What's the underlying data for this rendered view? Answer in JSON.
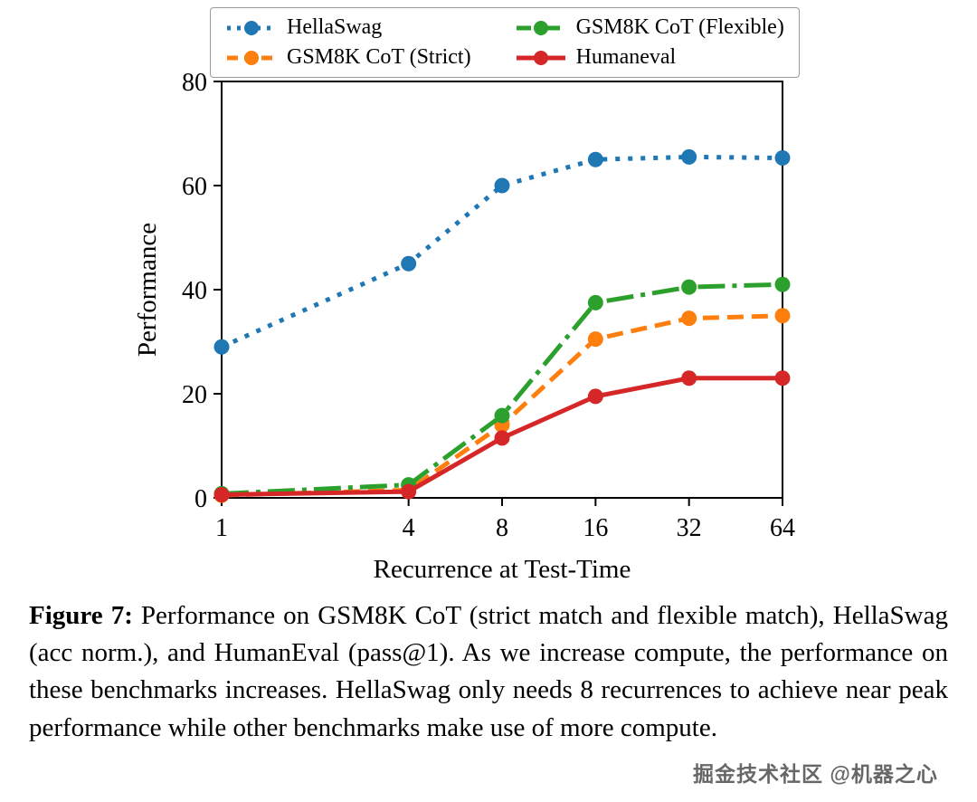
{
  "figure": {
    "caption_label": "Figure 7:",
    "caption_text": " Performance on GSM8K CoT (strict match and flexible match), HellaSwag (acc norm.), and HumanEval (pass@1). As we increase compute, the performance on these benchmarks increases. HellaSwag only needs 8 recurrences to achieve near peak performance while other benchmarks make use of more compute."
  },
  "watermark": "掘金技术社区 @机器之心",
  "chart_data": {
    "type": "line",
    "title": "",
    "xlabel": "Recurrence at Test-Time",
    "ylabel": "Performance",
    "x": [
      1,
      4,
      8,
      16,
      32,
      64
    ],
    "x_scale": "log2",
    "xticks": [
      1,
      4,
      8,
      16,
      32,
      64
    ],
    "ylim": [
      0,
      80
    ],
    "yticks": [
      0,
      20,
      40,
      60,
      80
    ],
    "grid": false,
    "legend_position": "top",
    "series": [
      {
        "name": "HellaSwag",
        "color": "#1f77b4",
        "dash": "dotted",
        "marker": "circle",
        "values": [
          29,
          45,
          60,
          65,
          65.5,
          65.3
        ]
      },
      {
        "name": "GSM8K CoT (Strict)",
        "color": "#ff7f0e",
        "dash": "dashed",
        "marker": "circle",
        "values": [
          0.5,
          1.5,
          14,
          30.5,
          34.5,
          35
        ]
      },
      {
        "name": "GSM8K CoT (Flexible)",
        "color": "#2ca02c",
        "dash": "dashdot",
        "marker": "circle",
        "values": [
          0.8,
          2.5,
          15.8,
          37.5,
          40.5,
          41
        ]
      },
      {
        "name": "Humaneval",
        "color": "#d62728",
        "dash": "solid",
        "marker": "circle",
        "values": [
          0.6,
          1.2,
          11.5,
          19.5,
          23,
          23
        ]
      }
    ]
  }
}
